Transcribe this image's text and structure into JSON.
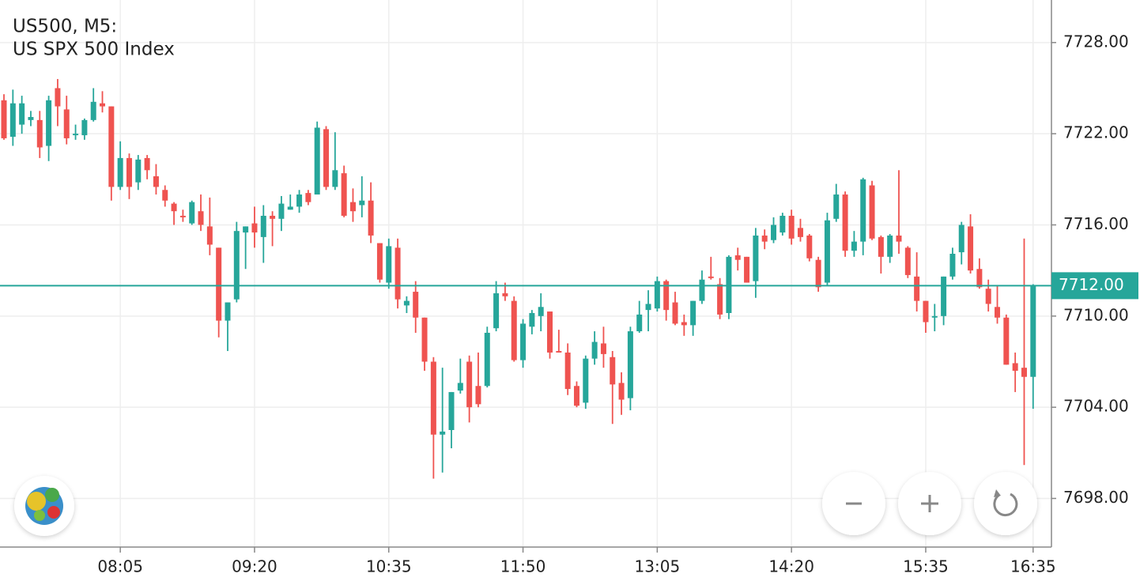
{
  "chart_data": {
    "type": "candlestick",
    "title": "US500, M5:",
    "subtitle": "US SPX 500 Index",
    "up_color": "#26a69a",
    "down_color": "#ef5350",
    "grid": true,
    "categories": [
      null,
      null,
      null,
      null,
      null,
      null,
      null,
      null,
      null,
      null,
      null,
      null,
      null,
      "08:05",
      null,
      null,
      null,
      null,
      null,
      null,
      null,
      null,
      null,
      null,
      null,
      null,
      null,
      null,
      "09:20",
      null,
      null,
      null,
      null,
      null,
      null,
      null,
      null,
      null,
      null,
      null,
      null,
      null,
      null,
      "10:35",
      null,
      null,
      null,
      null,
      null,
      null,
      null,
      null,
      null,
      null,
      null,
      null,
      null,
      null,
      "11:50",
      null,
      null,
      null,
      null,
      null,
      null,
      null,
      null,
      null,
      null,
      null,
      null,
      null,
      null,
      "13:05",
      null,
      null,
      null,
      null,
      null,
      null,
      null,
      null,
      null,
      null,
      null,
      null,
      null,
      null,
      "14:20",
      null,
      null,
      null,
      null,
      null,
      null,
      null,
      null,
      null,
      null,
      null,
      null,
      null,
      null,
      "15:35",
      null,
      null,
      null,
      null,
      null,
      null,
      null,
      null,
      null,
      null,
      null,
      "16:35"
    ],
    "open": [
      7724.2,
      7721.8,
      7722.6,
      7722.9,
      7722.9,
      7721.2,
      7725.0,
      7723.6,
      7721.9,
      7721.9,
      7722.9,
      7724.0,
      7723.8,
      7718.5,
      7720.4,
      7718.8,
      7720.4,
      7719.2,
      7718.3,
      7717.4,
      7716.6,
      7716.1,
      7716.9,
      7715.9,
      7714.5,
      7709.7,
      7711.1,
      7715.5,
      7716.1,
      7715.2,
      7716.6,
      7716.4,
      7717.0,
      7717.2,
      7718.1,
      7718.0,
      7722.3,
      7718.5,
      7719.4,
      7717.5,
      7717.3,
      7717.6,
      7714.8,
      7712.2,
      7714.5,
      7710.7,
      7711.6,
      7709.9,
      7707.0,
      7702.2,
      7702.5,
      7705.1,
      7707.0,
      7705.4,
      7705.4,
      7709.2,
      7711.5,
      7711.0,
      7707.1,
      7709.3,
      7710.0,
      7710.3,
      7707.7,
      7707.6,
      7705.4,
      7704.3,
      7707.2,
      7708.2,
      7707.3,
      7705.6,
      7704.6,
      7709.0,
      7710.4,
      7710.5,
      7712.3,
      7710.9,
      7709.6,
      7709.4,
      7711.0,
      7712.6,
      7712.1,
      7710.2,
      7714.0,
      7713.9,
      7712.3,
      7715.3,
      7715.0,
      7715.5,
      7716.6,
      7715.8,
      7715.3,
      7713.7,
      7712.2,
      7716.4,
      7718.0,
      7714.3,
      7714.9,
      7718.6,
      7715.2,
      7713.9,
      7715.3,
      7714.5,
      7712.6,
      7711.0,
      7709.9,
      7710.0,
      7712.6,
      7714.2,
      7715.9,
      7713.1,
      7711.8,
      7710.6,
      7709.9,
      7706.9,
      7706.6,
      7706.0
    ],
    "high": [
      7724.6,
      7724.9,
      7724.5,
      7723.5,
      7723.5,
      7724.5,
      7725.6,
      7724.5,
      7722.6,
      7723.0,
      7725.0,
      7724.8,
      7723.8,
      7721.5,
      7720.7,
      7720.6,
      7720.6,
      7720.0,
      7718.6,
      7717.5,
      7717.0,
      7717.6,
      7718.0,
      7717.8,
      7714.5,
      7710.9,
      7716.2,
      7715.9,
      7717.2,
      7717.3,
      7716.9,
      7717.9,
      7718.0,
      7718.3,
      7718.3,
      7722.8,
      7722.5,
      7722.1,
      7719.9,
      7718.4,
      7719.2,
      7718.8,
      7714.8,
      7715.1,
      7715.1,
      7711.3,
      7712.3,
      7709.9,
      7707.3,
      7706.6,
      7705.0,
      7707.2,
      7707.4,
      7707.6,
      7709.3,
      7712.3,
      7712.2,
      7711.3,
      7709.8,
      7710.4,
      7711.5,
      7710.3,
      7709.1,
      7708.2,
      7705.7,
      7707.4,
      7709.0,
      7709.3,
      7707.7,
      7706.3,
      7709.3,
      7711.0,
      7711.7,
      7712.6,
      7712.4,
      7711.6,
      7710.1,
      7711.0,
      7713.0,
      7713.9,
      7712.5,
      7714.0,
      7714.5,
      7713.9,
      7715.8,
      7715.7,
      7716.5,
      7716.8,
      7717.0,
      7716.4,
      7715.4,
      7713.9,
      7716.8,
      7718.7,
      7718.2,
      7715.6,
      7719.1,
      7718.9,
      7715.3,
      7715.4,
      7719.6,
      7714.6,
      7714.2,
      7711.0,
      7710.8,
      7712.6,
      7714.5,
      7716.2,
      7716.7,
      7713.8,
      7712.4,
      7712.0,
      7710.1,
      7707.6,
      7715.1,
      7712.1
    ],
    "low": [
      7721.6,
      7721.2,
      7722.0,
      7722.5,
      7720.4,
      7720.2,
      7722.5,
      7721.3,
      7721.6,
      7721.6,
      7722.8,
      7723.4,
      7717.6,
      7718.3,
      7717.7,
      7718.3,
      7719.0,
      7718.0,
      7717.2,
      7716.0,
      7716.2,
      7716.0,
      7715.6,
      7714.0,
      7708.6,
      7707.7,
      7710.9,
      7713.1,
      7714.5,
      7713.5,
      7714.6,
      7715.6,
      7717.0,
      7716.8,
      7717.3,
      7718.0,
      7718.3,
      7718.3,
      7716.5,
      7716.2,
      7716.5,
      7714.8,
      7712.2,
      7711.8,
      7710.5,
      7710.2,
      7708.9,
      7706.4,
      7699.3,
      7699.7,
      7701.3,
      7704.9,
      7703.0,
      7704.0,
      7705.3,
      7709.0,
      7711.0,
      7707.0,
      7706.6,
      7708.8,
      7709.0,
      7707.2,
      7707.6,
      7704.8,
      7704.0,
      7703.9,
      7706.8,
      7706.6,
      7702.9,
      7703.5,
      7703.8,
      7708.9,
      7709.0,
      7710.3,
      7709.7,
      7709.4,
      7708.7,
      7708.7,
      7710.8,
      7712.4,
      7709.8,
      7709.8,
      7713.0,
      7712.2,
      7711.2,
      7714.4,
      7714.8,
      7715.3,
      7714.7,
      7714.9,
      7713.6,
      7711.6,
      7712.0,
      7716.2,
      7713.9,
      7713.9,
      7714.0,
      7715.0,
      7712.8,
      7713.5,
      7714.1,
      7712.5,
      7710.3,
      7708.9,
      7709.0,
      7709.4,
      7712.4,
      7713.4,
      7712.8,
      7711.8,
      7710.3,
      7709.5,
      7706.8,
      7705.0,
      7700.2,
      7703.9
    ],
    "close": [
      7721.7,
      7724.0,
      7724.0,
      7723.1,
      7721.1,
      7724.2,
      7723.8,
      7721.7,
      7722.0,
      7722.9,
      7724.1,
      7723.8,
      7718.5,
      7720.4,
      7718.5,
      7720.3,
      7719.6,
      7718.5,
      7717.6,
      7716.9,
      7716.5,
      7717.5,
      7716.0,
      7714.7,
      7709.7,
      7710.9,
      7715.6,
      7715.9,
      7715.5,
      7716.6,
      7716.4,
      7717.4,
      7717.2,
      7718.0,
      7717.5,
      7722.4,
      7718.5,
      7719.6,
      7716.6,
      7716.9,
      7717.6,
      7715.3,
      7712.4,
      7714.6,
      7711.1,
      7711.0,
      7709.9,
      7707.0,
      7702.2,
      7702.4,
      7705.0,
      7705.6,
      7704.0,
      7704.2,
      7708.9,
      7711.5,
      7711.3,
      7707.1,
      7709.5,
      7710.2,
      7710.6,
      7707.6,
      7707.6,
      7705.2,
      7704.1,
      7707.2,
      7708.3,
      7707.5,
      7705.5,
      7704.5,
      7709.0,
      7710.1,
      7710.8,
      7712.3,
      7710.4,
      7709.5,
      7709.4,
      7711.0,
      7712.4,
      7712.5,
      7710.1,
      7713.9,
      7713.7,
      7712.2,
      7715.3,
      7714.9,
      7716.0,
      7716.6,
      7715.1,
      7715.2,
      7713.8,
      7711.9,
      7716.3,
      7718.0,
      7714.3,
      7714.9,
      7719.0,
      7715.1,
      7713.9,
      7715.3,
      7714.9,
      7712.7,
      7711.0,
      7709.6,
      7710.0,
      7712.6,
      7714.1,
      7716.0,
      7713.0,
      7711.9,
      7710.8,
      7709.9,
      7706.8,
      7706.4,
      7706.0,
      7712.0
    ],
    "ylim": [
      7694.8,
      7730.8
    ],
    "yticks": [
      {
        "value": 7698,
        "label": "7698.00"
      },
      {
        "value": 7704,
        "label": "7704.00"
      },
      {
        "value": 7710,
        "label": "7710.00"
      },
      {
        "value": 7716,
        "label": "7716.00"
      },
      {
        "value": 7722,
        "label": "7722.00"
      },
      {
        "value": 7728,
        "label": "7728.00"
      }
    ],
    "price_line": {
      "value": 7712,
      "label": "7712.00"
    }
  }
}
